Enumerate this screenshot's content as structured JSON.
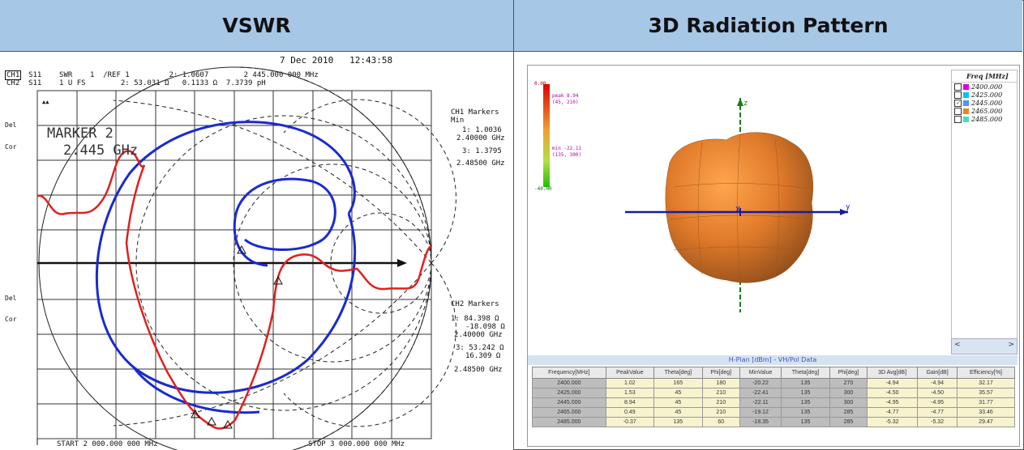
{
  "header": {
    "left_title": "VSWR",
    "right_title": "3D Radiation Pattern"
  },
  "vswr": {
    "date_line": "7 Dec 2010   12:43:58",
    "ch1_line": "CH1  S11    SWR    1  /REF 1         2: 1.0607        2 445.000 000 MHz",
    "ch2_line": "CH2  S11    1 U FS        2: 53.031 Ω   0.1133 Ω  7.3739 pH",
    "ch1_box": "CH1",
    "delta_mark": "▲▲",
    "del_label_1": "Del",
    "cor_label_1": "Cor",
    "del_label_2": "Del",
    "cor_label_2": "Cor",
    "marker_title": "MARKER 2",
    "marker_freq": "2.445 GHz",
    "ch1_markers_title": "CH1 Markers",
    "ch1_markers_min": "Min",
    "ch1_m1_val": "1: 1.0036",
    "ch1_m1_freq": "2.40000 GHz",
    "ch1_m3_val": "3: 1.3795",
    "ch1_m3_freq": "2.48500 GHz",
    "ch2_markers_title": "CH2 Markers",
    "ch2_m1_val": "1: 84.398 Ω",
    "ch2_m1_val2": "-18.098 Ω",
    "ch2_m1_freq": "2.40000 GHz",
    "ch2_m3_val": "3: 53.242 Ω",
    "ch2_m3_val2": "16.309 Ω",
    "ch2_m3_freq": "2.48500 GHz",
    "start_freq": "START 2 000.000 000 MHz",
    "stop_freq": "STOP 3 000.000 000 MHz",
    "colors": {
      "ch1_trace": "#e02020",
      "ch2_trace": "#1a2ad0"
    }
  },
  "radiation": {
    "scale_top": "0.00",
    "scale_bottom": "-40.00",
    "peak_label": "peak 8.94",
    "peak_angle": "(45, 210)",
    "min_label": "min -22.11",
    "min_angle": "(135, 300)",
    "axis_z": "z",
    "axis_y": "y",
    "axis_x": "X",
    "legend_header": "Freq [MHz]",
    "legend": [
      {
        "freq": "2400.000",
        "color": "#e000e0",
        "checked": false
      },
      {
        "freq": "2425.000",
        "color": "#00c0ff",
        "checked": false
      },
      {
        "freq": "2445.000",
        "color": "#5090ff",
        "checked": true
      },
      {
        "freq": "2465.000",
        "color": "#f08020",
        "checked": false
      },
      {
        "freq": "2485.000",
        "color": "#40e0c0",
        "checked": false
      }
    ],
    "scroll_left": "<",
    "scroll_right": ">",
    "table_title": "H-Plan [dBm] - VH/Pol Data",
    "columns": [
      "Frequency[MHz]",
      "PeakValue",
      "Theta[deg]",
      "Phi[deg]",
      "MinValue",
      "Theta[deg]",
      "Phi[deg]",
      "3D Avg[dB]",
      "Gain[dB]",
      "Efficiency[%]"
    ],
    "rows": [
      [
        "2400.000",
        "1.02",
        "165",
        "180",
        "-20.22",
        "135",
        "270",
        "-4.94",
        "-4.94",
        "32.17"
      ],
      [
        "2425.000",
        "1.53",
        "45",
        "210",
        "-22.41",
        "135",
        "300",
        "-4.50",
        "-4.50",
        "35.57"
      ],
      [
        "2445.000",
        "8.94",
        "45",
        "210",
        "-22.11",
        "135",
        "300",
        "-4.95",
        "-4.95",
        "31.77"
      ],
      [
        "2465.000",
        "0.49",
        "45",
        "210",
        "-19.12",
        "135",
        "285",
        "-4.77",
        "-4.77",
        "33.46"
      ],
      [
        "2485.000",
        "-0.37",
        "135",
        "60",
        "-18.35",
        "135",
        "285",
        "-5.32",
        "-5.32",
        "29.47"
      ]
    ],
    "colors": {
      "scale_top": "#e00000",
      "scale_bottom": "#00c000",
      "axis": "#1a1a9e",
      "axis_z": "#00a000",
      "body": "#e07020"
    }
  }
}
